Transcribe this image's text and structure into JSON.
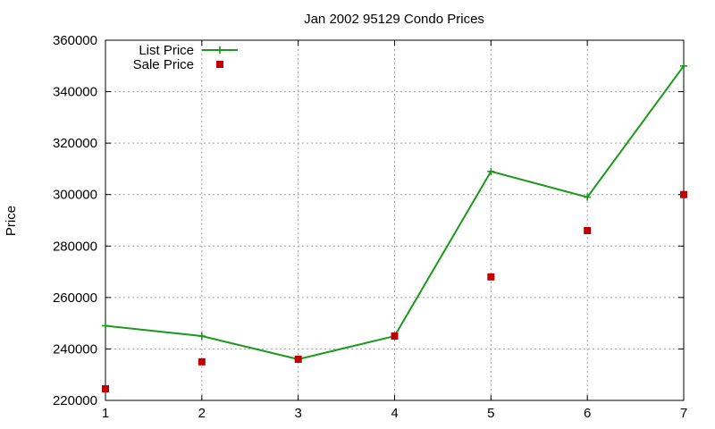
{
  "chart_data": {
    "type": "line",
    "title": "Jan 2002 95129 Condo Prices",
    "xlabel": "",
    "ylabel": "Price",
    "x": [
      1,
      2,
      3,
      4,
      5,
      6,
      7
    ],
    "xlim": [
      1,
      7
    ],
    "ylim": [
      220000,
      360000
    ],
    "xticks": [
      "1",
      "2",
      "3",
      "4",
      "5",
      "6",
      "7"
    ],
    "yticks": [
      "220000",
      "240000",
      "260000",
      "280000",
      "300000",
      "320000",
      "340000",
      "360000"
    ],
    "grid": true,
    "legend_position": "top-left",
    "series": [
      {
        "name": "List Price",
        "style": "line-with-plus-markers",
        "color": "#1a9a1a",
        "values": [
          249000,
          245000,
          236000,
          245000,
          309000,
          299000,
          350000
        ]
      },
      {
        "name": "Sale Price",
        "style": "square-markers",
        "color": "#c00000",
        "values": [
          224500,
          235000,
          236000,
          245000,
          268000,
          286000,
          300000
        ]
      }
    ]
  }
}
